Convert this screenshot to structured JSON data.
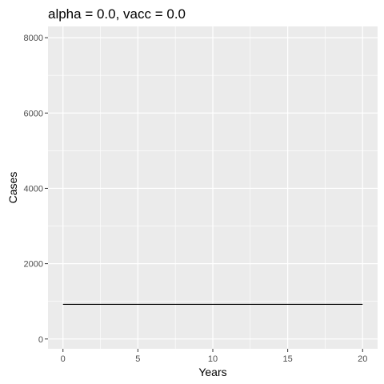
{
  "chart_data": {
    "type": "line",
    "title": "alpha = 0.0, vacc = 0.0",
    "xlabel": "Years",
    "ylabel": "Cases",
    "xlim": [
      -1,
      21
    ],
    "ylim": [
      -260,
      8300
    ],
    "x_ticks": [
      0,
      5,
      10,
      15,
      20
    ],
    "x_tick_labels": [
      "0",
      "5",
      "10",
      "15",
      "20"
    ],
    "y_ticks": [
      0,
      2000,
      4000,
      6000,
      8000
    ],
    "y_tick_labels": [
      "0",
      "2000",
      "4000",
      "6000",
      "8000"
    ],
    "grid": true,
    "series": [
      {
        "x": [
          0,
          20
        ],
        "values": [
          920,
          920
        ]
      }
    ],
    "colors": {
      "panel": "#ebebeb",
      "grid": "#ffffff",
      "line": "#000000",
      "tick": "#333333"
    }
  }
}
